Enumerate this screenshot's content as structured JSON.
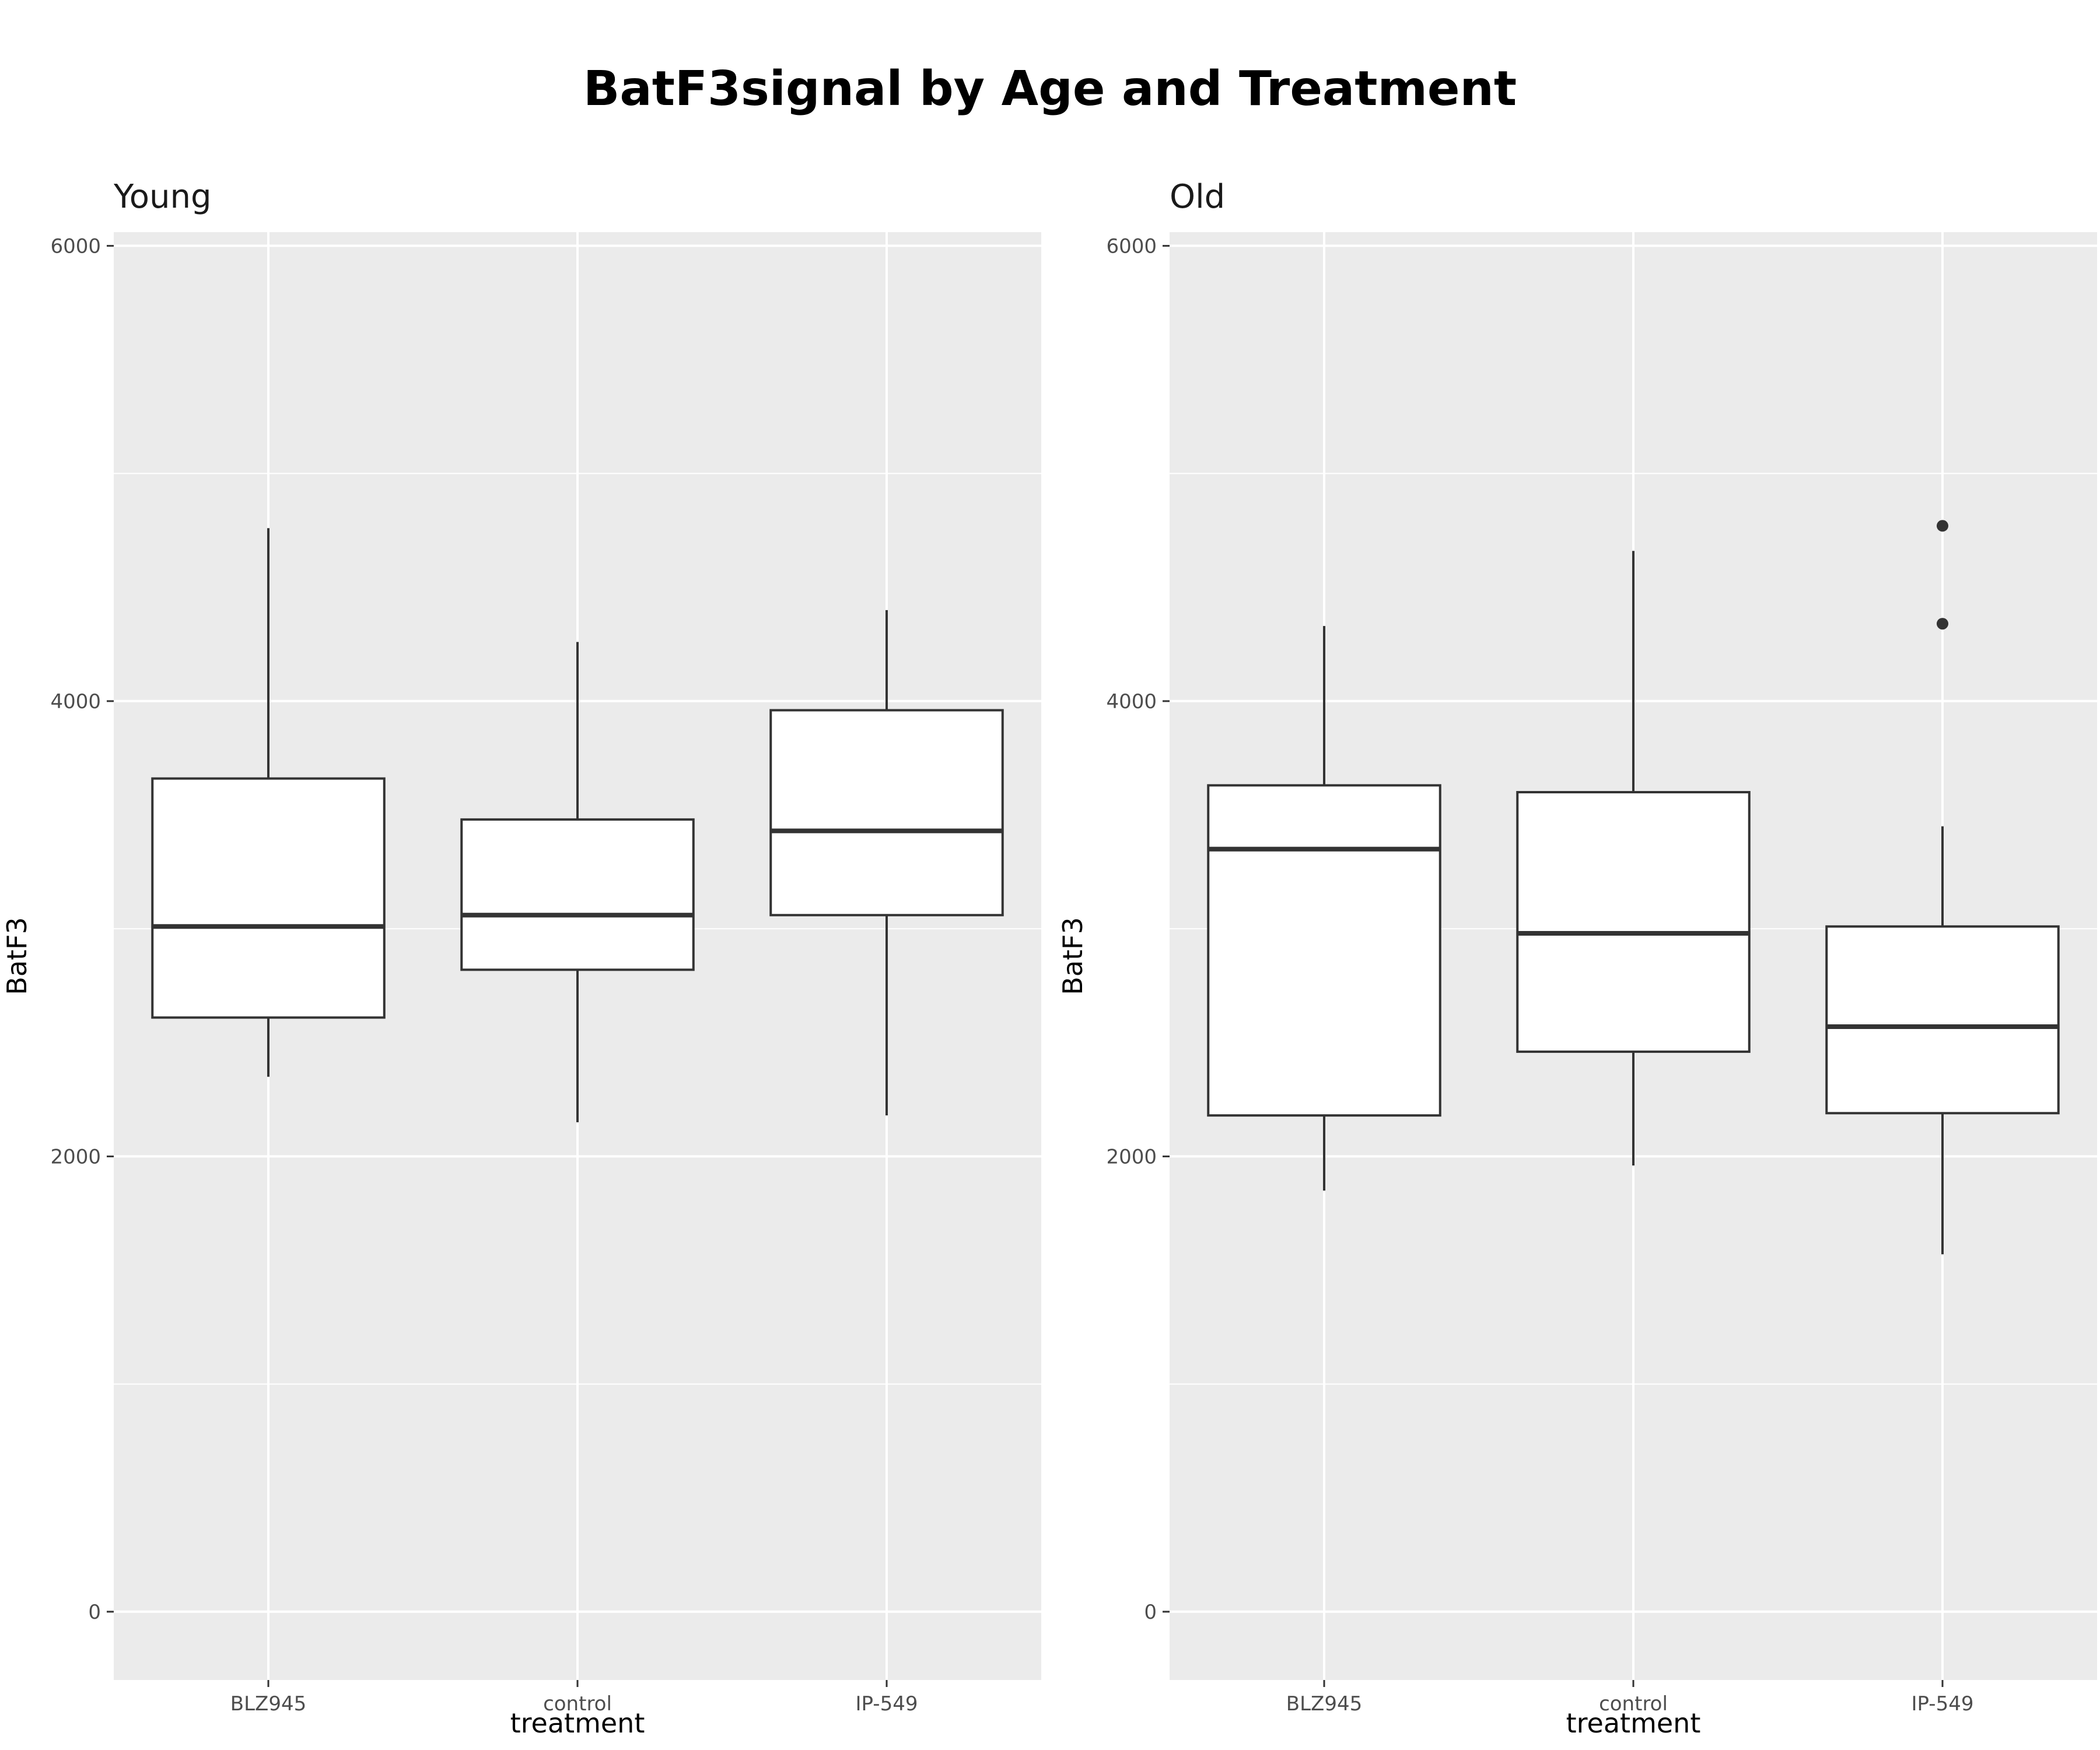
{
  "title": "BatF3signal by Age and Treatment",
  "chart_data": [
    {
      "type": "box",
      "panel": "Young",
      "xlabel": "treatment",
      "ylabel": "BatF3",
      "categories": [
        "BLZ945",
        "control",
        "IP-549"
      ],
      "ylim": [
        -300,
        6060
      ],
      "yticks": [
        0,
        2000,
        4000,
        6000
      ],
      "grid": true,
      "boxes": [
        {
          "category": "BLZ945",
          "whisker_low": 2350,
          "q1": 2610,
          "median": 3010,
          "q3": 3660,
          "whisker_high": 4760,
          "outliers": []
        },
        {
          "category": "control",
          "whisker_low": 2150,
          "q1": 2820,
          "median": 3060,
          "q3": 3480,
          "whisker_high": 4260,
          "outliers": []
        },
        {
          "category": "IP-549",
          "whisker_low": 2180,
          "q1": 3060,
          "median": 3430,
          "q3": 3960,
          "whisker_high": 4400,
          "outliers": []
        }
      ]
    },
    {
      "type": "box",
      "panel": "Old",
      "xlabel": "treatment",
      "ylabel": "BatF3",
      "categories": [
        "BLZ945",
        "control",
        "IP-549"
      ],
      "ylim": [
        -300,
        6060
      ],
      "yticks": [
        0,
        2000,
        4000,
        6000
      ],
      "grid": true,
      "boxes": [
        {
          "category": "BLZ945",
          "whisker_low": 1850,
          "q1": 2180,
          "median": 3350,
          "q3": 3630,
          "whisker_high": 4330,
          "outliers": []
        },
        {
          "category": "control",
          "whisker_low": 1960,
          "q1": 2460,
          "median": 2980,
          "q3": 3600,
          "whisker_high": 4660,
          "outliers": []
        },
        {
          "category": "IP-549",
          "whisker_low": 1570,
          "q1": 2190,
          "median": 2570,
          "q3": 3010,
          "whisker_high": 3450,
          "outliers": [
            4340,
            4770
          ]
        }
      ]
    }
  ]
}
